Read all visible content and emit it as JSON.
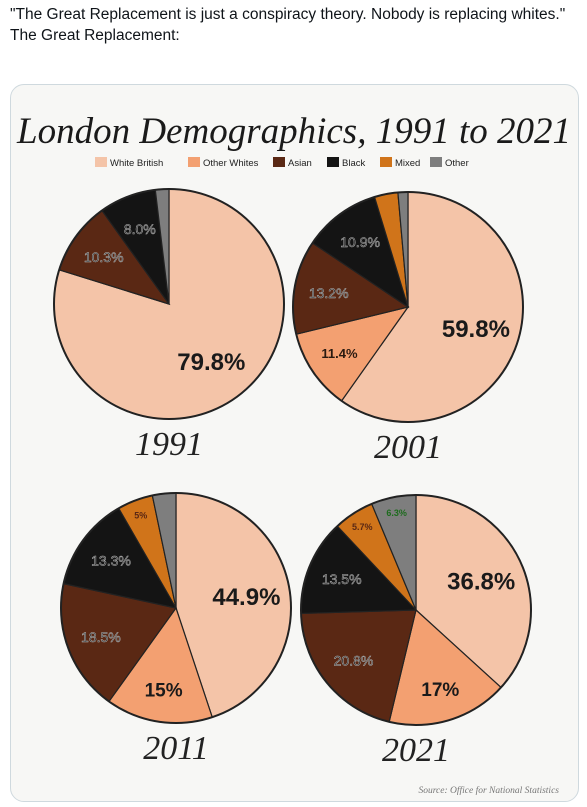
{
  "post": {
    "text_line1": "\"The Great Replacement is just a conspiracy theory. Nobody is replacing whites.\"",
    "text_line2": "The Great Replacement:"
  },
  "chart_data": {
    "type": "pie",
    "title": "London Demographics, 1991 to 2021",
    "source": "Source: Office for National Statistics",
    "legend_position": "top",
    "categories": [
      "White British",
      "Other Whites",
      "Asian",
      "Black",
      "Mixed",
      "Other"
    ],
    "colors": {
      "White British": "#f4c4a8",
      "Other Whites": "#f3a071",
      "Asian": "#5a2814",
      "Black": "#141414",
      "Mixed": "#d0741a",
      "Other": "#7e7e7e"
    },
    "charts": [
      {
        "year": "1991",
        "values": [
          79.8,
          0,
          10.3,
          8.0,
          0,
          1.9
        ],
        "labels": [
          "79.8%",
          "",
          "10.3%",
          "8.0%",
          "",
          ""
        ]
      },
      {
        "year": "2001",
        "values": [
          59.8,
          11.4,
          13.2,
          10.9,
          3.3,
          1.4
        ],
        "labels": [
          "59.8%",
          "11.4%",
          "13.2%",
          "10.9%",
          "",
          ""
        ]
      },
      {
        "year": "2011",
        "values": [
          44.9,
          15,
          18.5,
          13.3,
          5,
          3.3
        ],
        "labels": [
          "44.9%",
          "15%",
          "18.5%",
          "13.3%",
          "5%",
          ""
        ]
      },
      {
        "year": "2021",
        "values": [
          36.8,
          17,
          20.8,
          13.5,
          5.7,
          6.3
        ],
        "labels": [
          "36.8%",
          "17%",
          "20.8%",
          "13.5%",
          "5.7%",
          "6.3%"
        ]
      }
    ]
  }
}
